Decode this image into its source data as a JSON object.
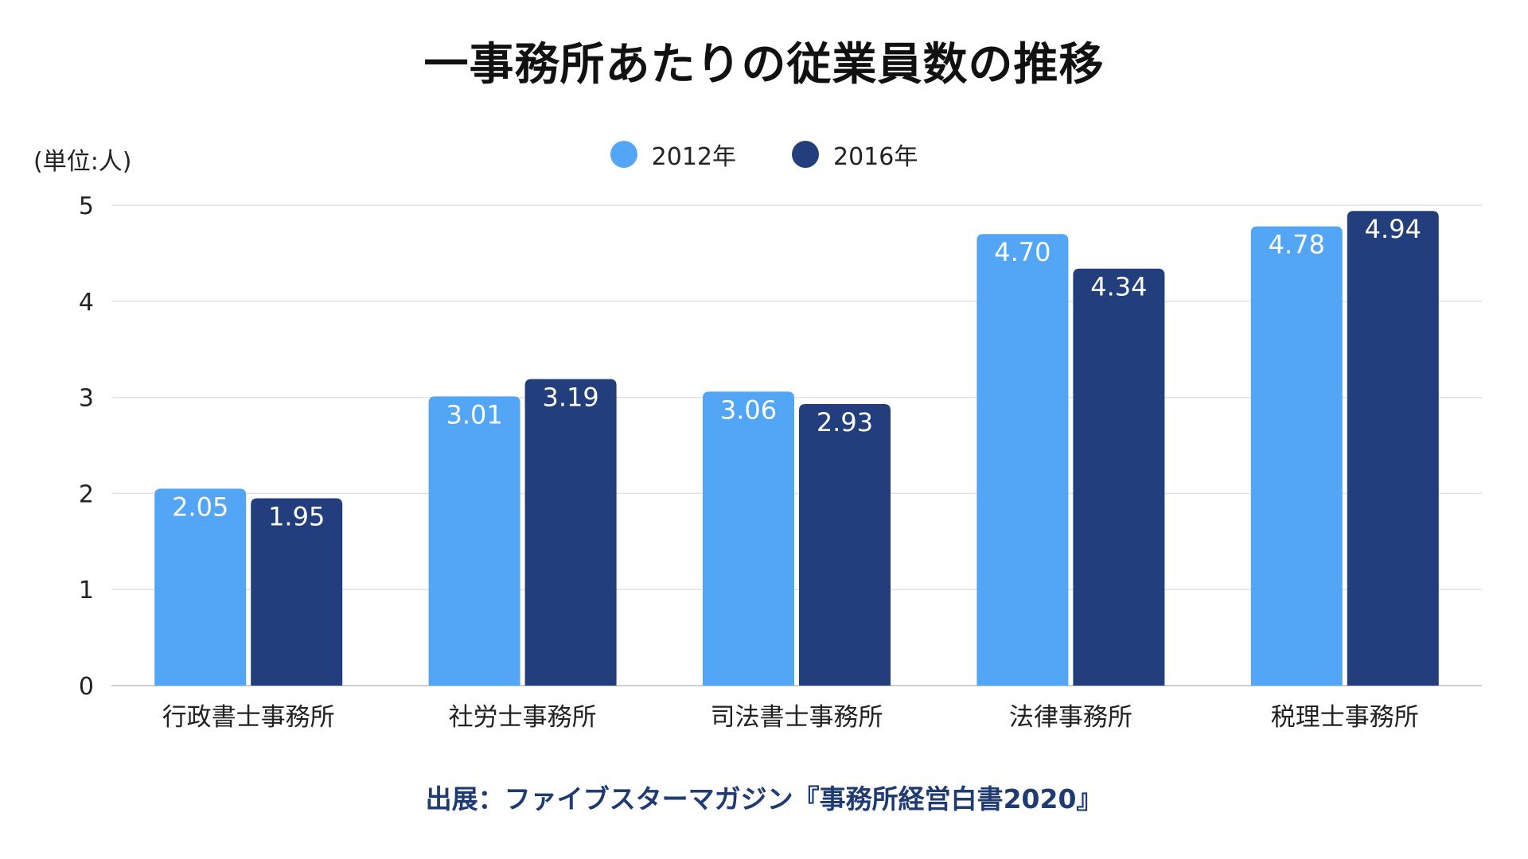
{
  "title": "一事務所あたりの従業員数の推移",
  "unit_label": "(単位:人)",
  "source": "出展：ファイブスターマガジン『事務所経営白書2020』",
  "colors": {
    "series_2012": "#52a6f5",
    "series_2016": "#233e7c",
    "grid": "#e2e2e2",
    "axis": "#bdbdbd",
    "source_text": "#1f3b73"
  },
  "chart_data": {
    "type": "bar",
    "categories": [
      "行政書士事務所",
      "社労士事務所",
      "司法書士事務所",
      "法律事務所",
      "税理士事務所"
    ],
    "series": [
      {
        "name": "2012年",
        "values": [
          2.05,
          3.01,
          3.06,
          4.7,
          4.78
        ]
      },
      {
        "name": "2016年",
        "values": [
          1.95,
          3.19,
          2.93,
          4.34,
          4.94
        ]
      }
    ],
    "value_labels": [
      [
        "2.05",
        "3.01",
        "3.06",
        "4.70",
        "4.78"
      ],
      [
        "1.95",
        "3.19",
        "2.93",
        "4.34",
        "4.94"
      ]
    ],
    "yticks": [
      "0",
      "1",
      "2",
      "3",
      "4",
      "5"
    ],
    "ylim": [
      0,
      5
    ],
    "grid": true,
    "legend_position": "top-center"
  }
}
